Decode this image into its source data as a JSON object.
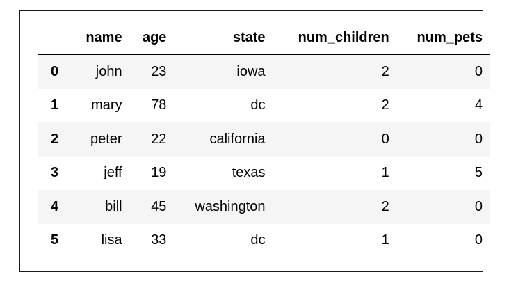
{
  "table": {
    "columns": [
      "",
      "name",
      "age",
      "state",
      "num_children",
      "num_pets"
    ],
    "rows": [
      {
        "index": "0",
        "name": "john",
        "age": "23",
        "state": "iowa",
        "num_children": "2",
        "num_pets": "0"
      },
      {
        "index": "1",
        "name": "mary",
        "age": "78",
        "state": "dc",
        "num_children": "2",
        "num_pets": "4"
      },
      {
        "index": "2",
        "name": "peter",
        "age": "22",
        "state": "california",
        "num_children": "0",
        "num_pets": "0"
      },
      {
        "index": "3",
        "name": "jeff",
        "age": "19",
        "state": "texas",
        "num_children": "1",
        "num_pets": "5"
      },
      {
        "index": "4",
        "name": "bill",
        "age": "45",
        "state": "washington",
        "num_children": "2",
        "num_pets": "0"
      },
      {
        "index": "5",
        "name": "lisa",
        "age": "33",
        "state": "dc",
        "num_children": "1",
        "num_pets": "0"
      }
    ]
  },
  "colors": {
    "row_stripe": "#f5f5f5",
    "border": "#000000",
    "text": "#000000"
  }
}
